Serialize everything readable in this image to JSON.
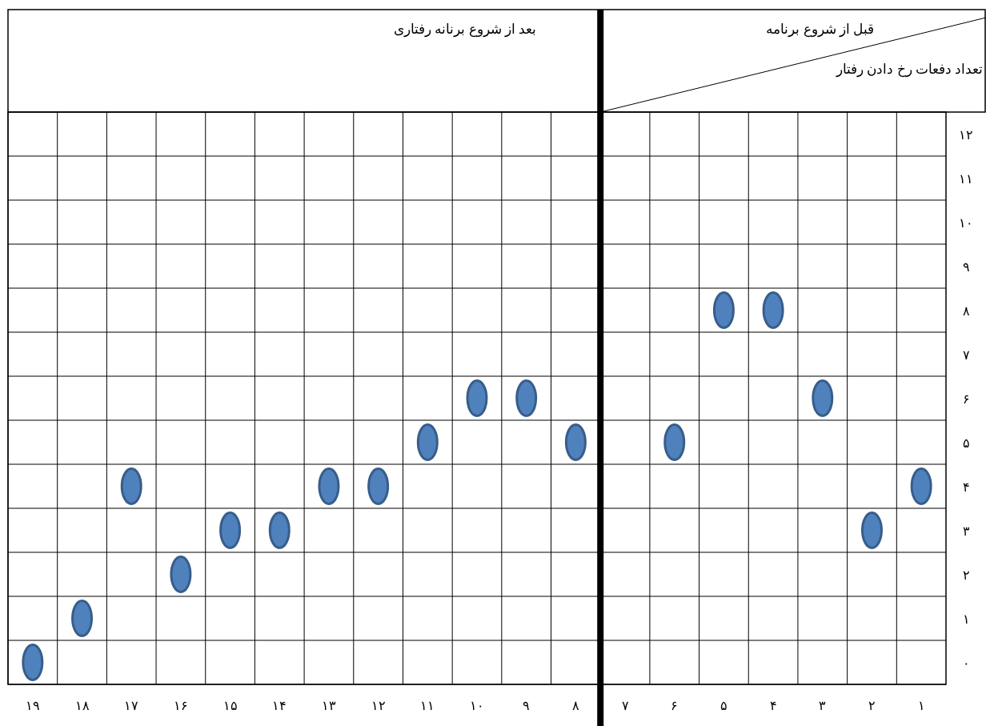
{
  "chart_data": {
    "type": "scatter",
    "ylabel": "تعداد دفعات رخ دادن رفتار",
    "annotations": [
      "بعد از شروع برنانه رفتاری",
      "قبل از شروع برنامه"
    ],
    "x": [
      19,
      18,
      17,
      16,
      15,
      14,
      13,
      12,
      11,
      10,
      9,
      8,
      6,
      5,
      4,
      3,
      2,
      1
    ],
    "series": [
      {
        "color": "#4f81bd",
        "values": [
          0,
          1,
          4,
          2,
          3,
          3,
          4,
          4,
          5,
          6,
          6,
          5,
          5,
          8,
          8,
          6,
          3,
          4
        ]
      }
    ],
    "xlim": [
      19.5,
      0.5
    ],
    "xticks": [
      {
        "value": 19,
        "label": "۱۹"
      },
      {
        "value": 18,
        "label": "۱۸"
      },
      {
        "value": 17,
        "label": "۱۷"
      },
      {
        "value": 16,
        "label": "۱۶"
      },
      {
        "value": 15,
        "label": "۱۵"
      },
      {
        "value": 14,
        "label": "۱۴"
      },
      {
        "value": 13,
        "label": "۱۳"
      },
      {
        "value": 12,
        "label": "۱۲"
      },
      {
        "value": 11,
        "label": "۱۱"
      },
      {
        "value": 10,
        "label": "۱۰"
      },
      {
        "value": 9,
        "label": "۹"
      },
      {
        "value": 8,
        "label": "۸"
      },
      {
        "value": 7,
        "label": "۷"
      },
      {
        "value": 6,
        "label": "۶"
      },
      {
        "value": 5,
        "label": "۵"
      },
      {
        "value": 4,
        "label": "۴"
      },
      {
        "value": 3,
        "label": "۳"
      },
      {
        "value": 2,
        "label": "۲"
      },
      {
        "value": 1,
        "label": "۱"
      }
    ],
    "ylim": [
      -0.5,
      12.5
    ],
    "yticks": [
      {
        "value": 0,
        "label": "۰"
      },
      {
        "value": 1,
        "label": "۱"
      },
      {
        "value": 2,
        "label": "۲"
      },
      {
        "value": 3,
        "label": "۳"
      },
      {
        "value": 4,
        "label": "۴"
      },
      {
        "value": 5,
        "label": "۵"
      },
      {
        "value": 6,
        "label": "۶"
      },
      {
        "value": 7,
        "label": "۷"
      },
      {
        "value": 8,
        "label": "۸"
      },
      {
        "value": 9,
        "label": "۹"
      },
      {
        "value": 10,
        "label": "۱۰"
      },
      {
        "value": 11,
        "label": "۱۱"
      },
      {
        "value": 12,
        "label": "۱۲"
      }
    ],
    "ref_lines": [
      {
        "axis": "x",
        "value": 7.5,
        "color": "#000000"
      }
    ],
    "grid": true,
    "marker": "circle"
  }
}
